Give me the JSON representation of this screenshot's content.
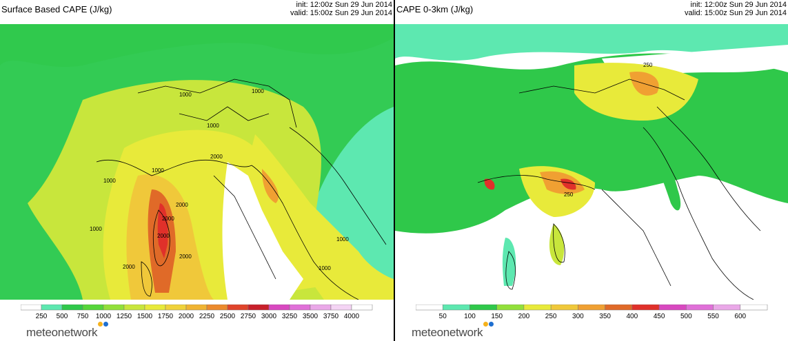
{
  "left": {
    "title": "Surface Based CAPE (J/kg)",
    "init": "init: 12:00z Sun 29 Jun 2014",
    "valid": "valid: 15:00z Sun 29 Jun 2014",
    "colorbar": {
      "ticks": [
        "250",
        "500",
        "750",
        "1000",
        "1250",
        "1500",
        "1750",
        "2000",
        "2250",
        "2500",
        "2750",
        "3000",
        "3250",
        "3500",
        "3750",
        "4000"
      ],
      "colors": [
        "#ffffff",
        "#5de8b0",
        "#2fc84a",
        "#56d63a",
        "#92e03a",
        "#c8e63c",
        "#e8ea3a",
        "#f0d23a",
        "#f0b432",
        "#ec8a2c",
        "#e0442a",
        "#c8202a",
        "#d848c0",
        "#e070d8",
        "#eaa8e8",
        "#f4d4f4",
        "#ffffff"
      ],
      "contour_labels": [
        "1000",
        "1000",
        "1000",
        "1000",
        "1000",
        "2000",
        "2000",
        "2000",
        "2000",
        "1000",
        "1000",
        "1000",
        "2000",
        "2000"
      ]
    }
  },
  "right": {
    "title": "CAPE 0-3km (J/kg)",
    "init": "init: 12:00z Sun 29 Jun 2014",
    "valid": "valid: 15:00z Sun 29 Jun 2014",
    "colorbar": {
      "ticks": [
        "50",
        "100",
        "150",
        "200",
        "250",
        "300",
        "350",
        "400",
        "450",
        "500",
        "550",
        "600"
      ],
      "colors": [
        "#ffffff",
        "#5de8b0",
        "#2fc84a",
        "#92e03a",
        "#e8ea3a",
        "#f0c83a",
        "#f0a032",
        "#e06a28",
        "#e0302a",
        "#d848c0",
        "#e070d8",
        "#eaa8e8",
        "#ffffff"
      ],
      "contour_labels": [
        "250",
        "250"
      ]
    }
  },
  "branding": {
    "logo_text": "meteonetwork",
    "dot_colors": [
      "#f5b21c",
      "#1e6fd0"
    ]
  }
}
